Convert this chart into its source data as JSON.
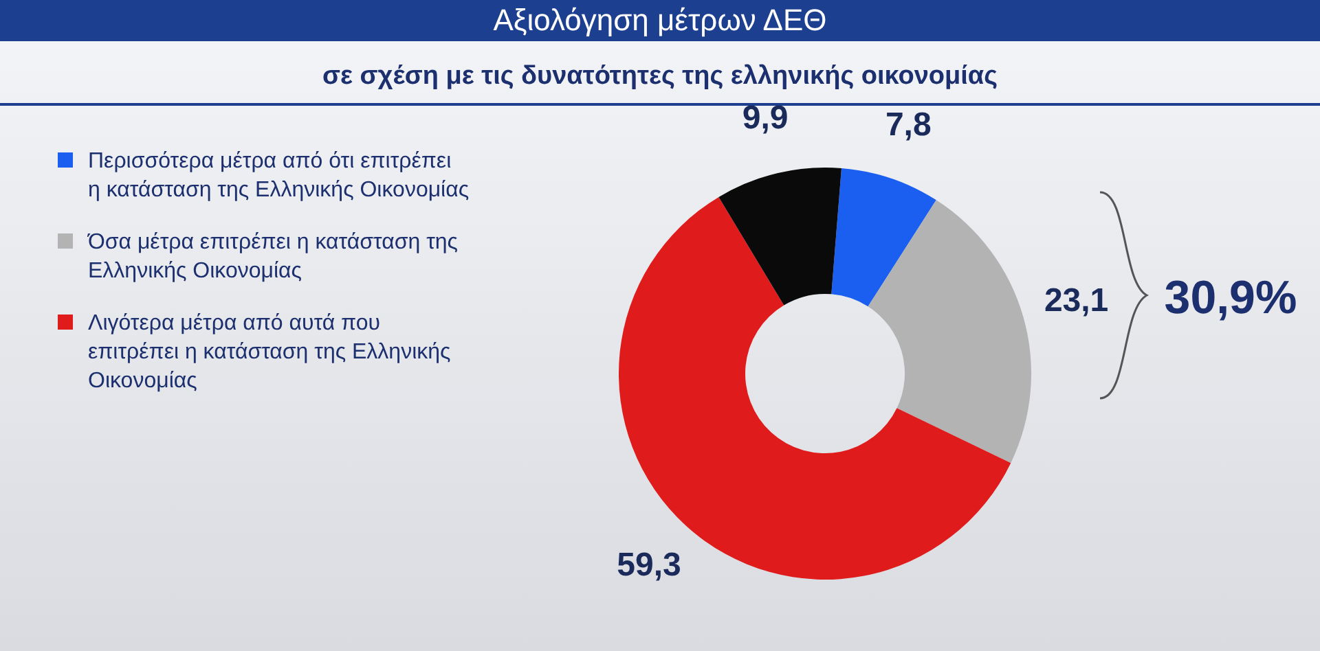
{
  "chart_data": {
    "type": "donut",
    "title": "Αξιολόγηση μέτρων ΔΕΘ",
    "subtitle": "σε σχέση με τις δυνατότητες της ελληνικής οικονομίας",
    "categories": [
      "Περισσότερα μέτρα από ότι επιτρέπει η κατάσταση της Ελληνικής Οικονομίας",
      "Όσα μέτρα επιτρέπει η κατάσταση της Ελληνικής Οικονομίας",
      "Λιγότερα μέτρα από αυτά που επιτρέπει η κατάσταση της Ελληνικής Οικονομίας",
      null
    ],
    "values": [
      7.8,
      23.1,
      59.3,
      9.9
    ],
    "colors": [
      "#1b5ff0",
      "#b3b3b3",
      "#e01b1b",
      "#0a0a0a"
    ],
    "value_labels": [
      "7,8",
      "23,1",
      "59,3",
      "9,9"
    ],
    "annotations": [
      "30,9%"
    ],
    "legend": "left"
  }
}
